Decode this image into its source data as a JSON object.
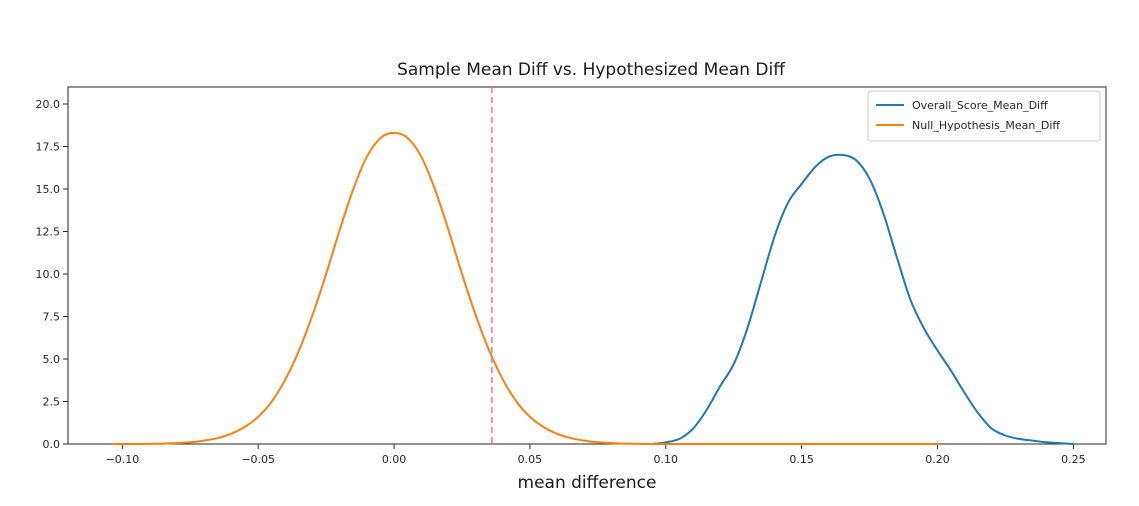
{
  "chart_data": {
    "type": "line",
    "title": "Sample Mean Diff vs. Hypothesized Mean Diff",
    "xlabel": "mean difference",
    "ylabel": "",
    "xlim": [
      -0.12,
      0.262
    ],
    "ylim": [
      0,
      21
    ],
    "xticks": [
      -0.1,
      -0.05,
      0.0,
      0.05,
      0.1,
      0.15,
      0.2,
      0.25
    ],
    "xtick_labels": [
      "−0.10",
      "−0.05",
      "0.00",
      "0.05",
      "0.10",
      "0.15",
      "0.20",
      "0.25"
    ],
    "yticks": [
      0,
      2.5,
      5,
      7.5,
      10,
      12.5,
      15,
      17.5,
      20
    ],
    "ytick_labels": [
      "0.0",
      "2.5",
      "5.0",
      "7.5",
      "10.0",
      "12.5",
      "15.0",
      "17.5",
      "20.0"
    ],
    "grid": false,
    "legend_position": "top-right",
    "series": [
      {
        "name": "Overall_Score_Mean_Diff",
        "color": "#1f77b4",
        "x": [
          0.095,
          0.1,
          0.105,
          0.11,
          0.115,
          0.12,
          0.125,
          0.13,
          0.135,
          0.14,
          0.145,
          0.15,
          0.155,
          0.16,
          0.165,
          0.17,
          0.175,
          0.18,
          0.185,
          0.19,
          0.195,
          0.2,
          0.205,
          0.21,
          0.215,
          0.22,
          0.225,
          0.23,
          0.235,
          0.24,
          0.245,
          0.25
        ],
        "y": [
          0.0,
          0.1,
          0.3,
          0.9,
          2.0,
          3.4,
          4.7,
          6.8,
          9.5,
          12.2,
          14.2,
          15.3,
          16.3,
          16.9,
          17.0,
          16.7,
          15.6,
          13.6,
          11.0,
          8.5,
          6.8,
          5.5,
          4.3,
          3.0,
          1.8,
          0.9,
          0.5,
          0.3,
          0.2,
          0.1,
          0.05,
          0.0
        ]
      },
      {
        "name": "Null_Hypothesis_Mean_Diff",
        "color": "#ff7f0e",
        "x": [
          -0.103,
          -0.095,
          -0.09,
          -0.085,
          -0.08,
          -0.075,
          -0.07,
          -0.065,
          -0.06,
          -0.055,
          -0.05,
          -0.045,
          -0.04,
          -0.035,
          -0.03,
          -0.025,
          -0.02,
          -0.015,
          -0.01,
          -0.005,
          0.0,
          0.005,
          0.01,
          0.015,
          0.02,
          0.025,
          0.03,
          0.035,
          0.04,
          0.045,
          0.05,
          0.055,
          0.06,
          0.065,
          0.07,
          0.075,
          0.08,
          0.085,
          0.09,
          0.095,
          0.1,
          0.11,
          0.12,
          0.13,
          0.14,
          0.15,
          0.16,
          0.17,
          0.18,
          0.19,
          0.2
        ],
        "y": [
          0.0,
          0.0,
          0.01,
          0.02,
          0.05,
          0.1,
          0.2,
          0.35,
          0.6,
          1.0,
          1.6,
          2.5,
          3.8,
          5.5,
          7.6,
          10.0,
          12.6,
          15.0,
          16.9,
          18.0,
          18.3,
          18.0,
          16.9,
          15.0,
          12.6,
          10.0,
          7.6,
          5.5,
          3.8,
          2.5,
          1.6,
          1.0,
          0.6,
          0.35,
          0.2,
          0.1,
          0.05,
          0.02,
          0.01,
          0.0,
          0.0,
          0.0,
          0.0,
          0.0,
          0.0,
          0.0,
          0.0,
          0.0,
          0.0,
          0.0,
          0.0
        ]
      }
    ],
    "vline": {
      "x": 0.036,
      "color": "#ff6f7a",
      "style": "dashed"
    }
  }
}
